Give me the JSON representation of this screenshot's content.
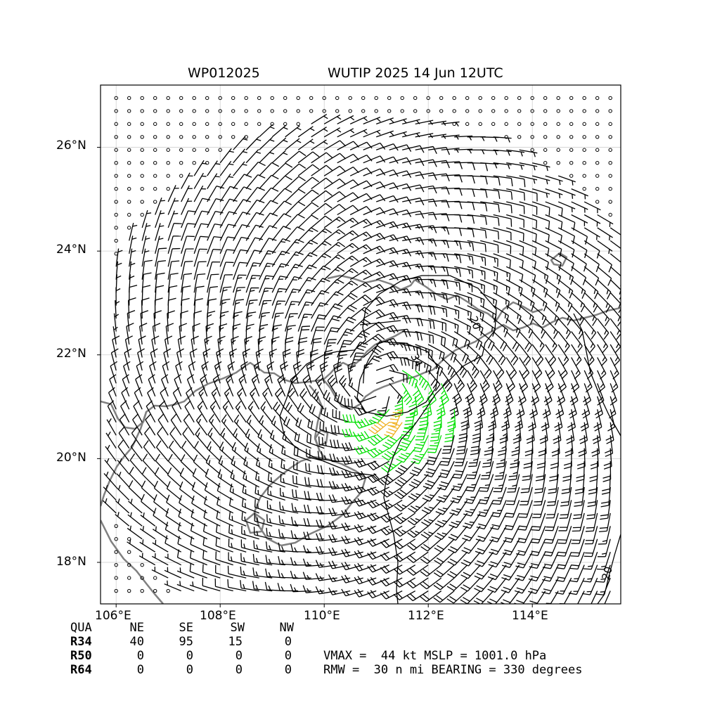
{
  "title": {
    "storm_id": "WP012025",
    "storm_time": "WUTIP 2025 14 Jun 12UTC"
  },
  "map": {
    "lat_ticks": [
      {
        "value": 26,
        "label": "26°N"
      },
      {
        "value": 24,
        "label": "24°N"
      },
      {
        "value": 22,
        "label": "22°N"
      },
      {
        "value": 20,
        "label": "20°N"
      },
      {
        "value": 18,
        "label": "18°N"
      }
    ],
    "lon_ticks": [
      {
        "value": 106,
        "label": "106°E"
      },
      {
        "value": 108,
        "label": "108°E"
      },
      {
        "value": 110,
        "label": "110°E"
      },
      {
        "value": 112,
        "label": "112°E"
      },
      {
        "value": 114,
        "label": "114°E"
      }
    ],
    "lon_range": [
      105.7,
      115.7
    ],
    "lat_range": [
      17.2,
      27.2
    ],
    "storm_center": {
      "lon": 111.0,
      "lat": 21.35
    },
    "contour_labels": [
      "20",
      "34",
      "20"
    ],
    "colors": {
      "below_34": "#000000",
      "r34": "#00e000",
      "r50": "#f0b020",
      "coast": "#808080",
      "grid": "#d0d0d0"
    }
  },
  "radii_table": {
    "header": [
      "QUA",
      "NE",
      "SE",
      "SW",
      "NW"
    ],
    "rows": [
      {
        "label": "R34",
        "values": [
          "40",
          "95",
          "15",
          "0"
        ]
      },
      {
        "label": "R50",
        "values": [
          "0",
          "0",
          "0",
          "0"
        ]
      },
      {
        "label": "R64",
        "values": [
          "0",
          "0",
          "0",
          "0"
        ]
      }
    ]
  },
  "summary": {
    "line1": "VMAX =  44 kt MSLP = 1001.0 hPa",
    "line2": "RMW =  30 n mi BEARING = 330 degrees"
  }
}
